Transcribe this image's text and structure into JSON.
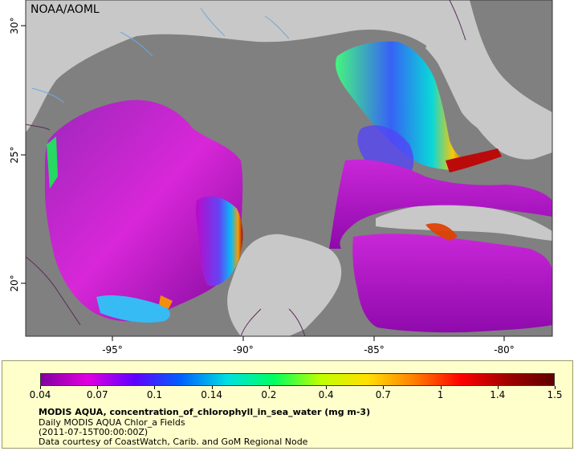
{
  "watermark": "NOAA/AOML",
  "map": {
    "lon_ticks": [
      "-95°",
      "-90°",
      "-85°",
      "-80°"
    ],
    "lat_ticks": [
      "30°",
      "25°",
      "20°"
    ],
    "colors": {
      "land": "#c8c8c8",
      "no_data_ocean": "#808080",
      "rivers": "#6fa8dc",
      "borders": "#5a2d5a"
    }
  },
  "legend": {
    "colorbar_ticks": [
      "0.04",
      "0.07",
      "0.1",
      "0.14",
      "0.2",
      "0.4",
      "0.7",
      "1",
      "1.4",
      "1.5"
    ],
    "colorbar_colors": [
      "#8000a0",
      "#e000e0",
      "#6000ff",
      "#0060ff",
      "#00e0e0",
      "#00ff60",
      "#c0ff00",
      "#ffe000",
      "#ff8000",
      "#ff0000",
      "#a00000",
      "#600000"
    ],
    "title": "MODIS AQUA, concentration_of_chlorophyll_in_sea_water (mg m-3)",
    "line1": "Daily MODIS AQUA Chlor_a Fields",
    "line2": "(2011-07-15T00:00:00Z)",
    "line3": "Data courtesy of CoastWatch, Carib. and GoM Regional Node"
  }
}
